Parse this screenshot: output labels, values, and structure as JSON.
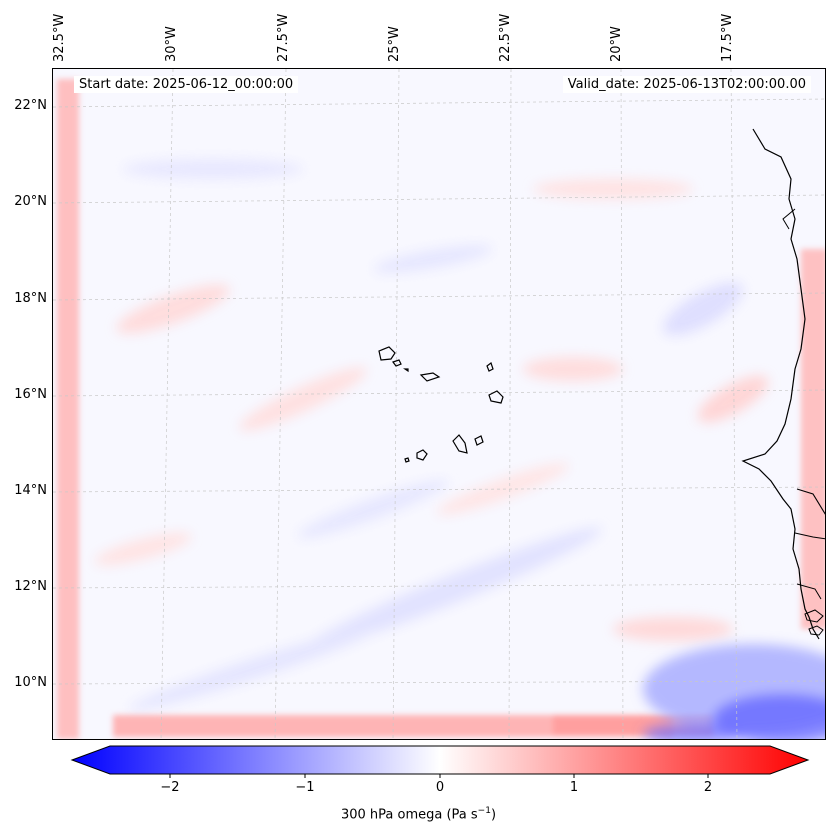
{
  "map": {
    "start_date": "Start date: 2025-06-12_00:00:00",
    "valid_date": "Valid_date: 2025-06-13T02:00:00.00",
    "lon_labels": [
      "32.5°W",
      "30°W",
      "27.5°W",
      "25°W",
      "22.5°W",
      "20°W",
      "17.5°W"
    ],
    "lat_labels": [
      "22°N",
      "20°N",
      "18°N",
      "16°N",
      "14°N",
      "12°N",
      "10°N"
    ]
  },
  "colorbar": {
    "label_main": "300 hPa omega (Pa s",
    "label_sup": "−1",
    "label_close": ")",
    "ticks": [
      "−2",
      "−1",
      "0",
      "1",
      "2"
    ],
    "colors": {
      "negative": "#0000ff",
      "zero": "#ffffff",
      "positive": "#ff0000"
    }
  }
}
